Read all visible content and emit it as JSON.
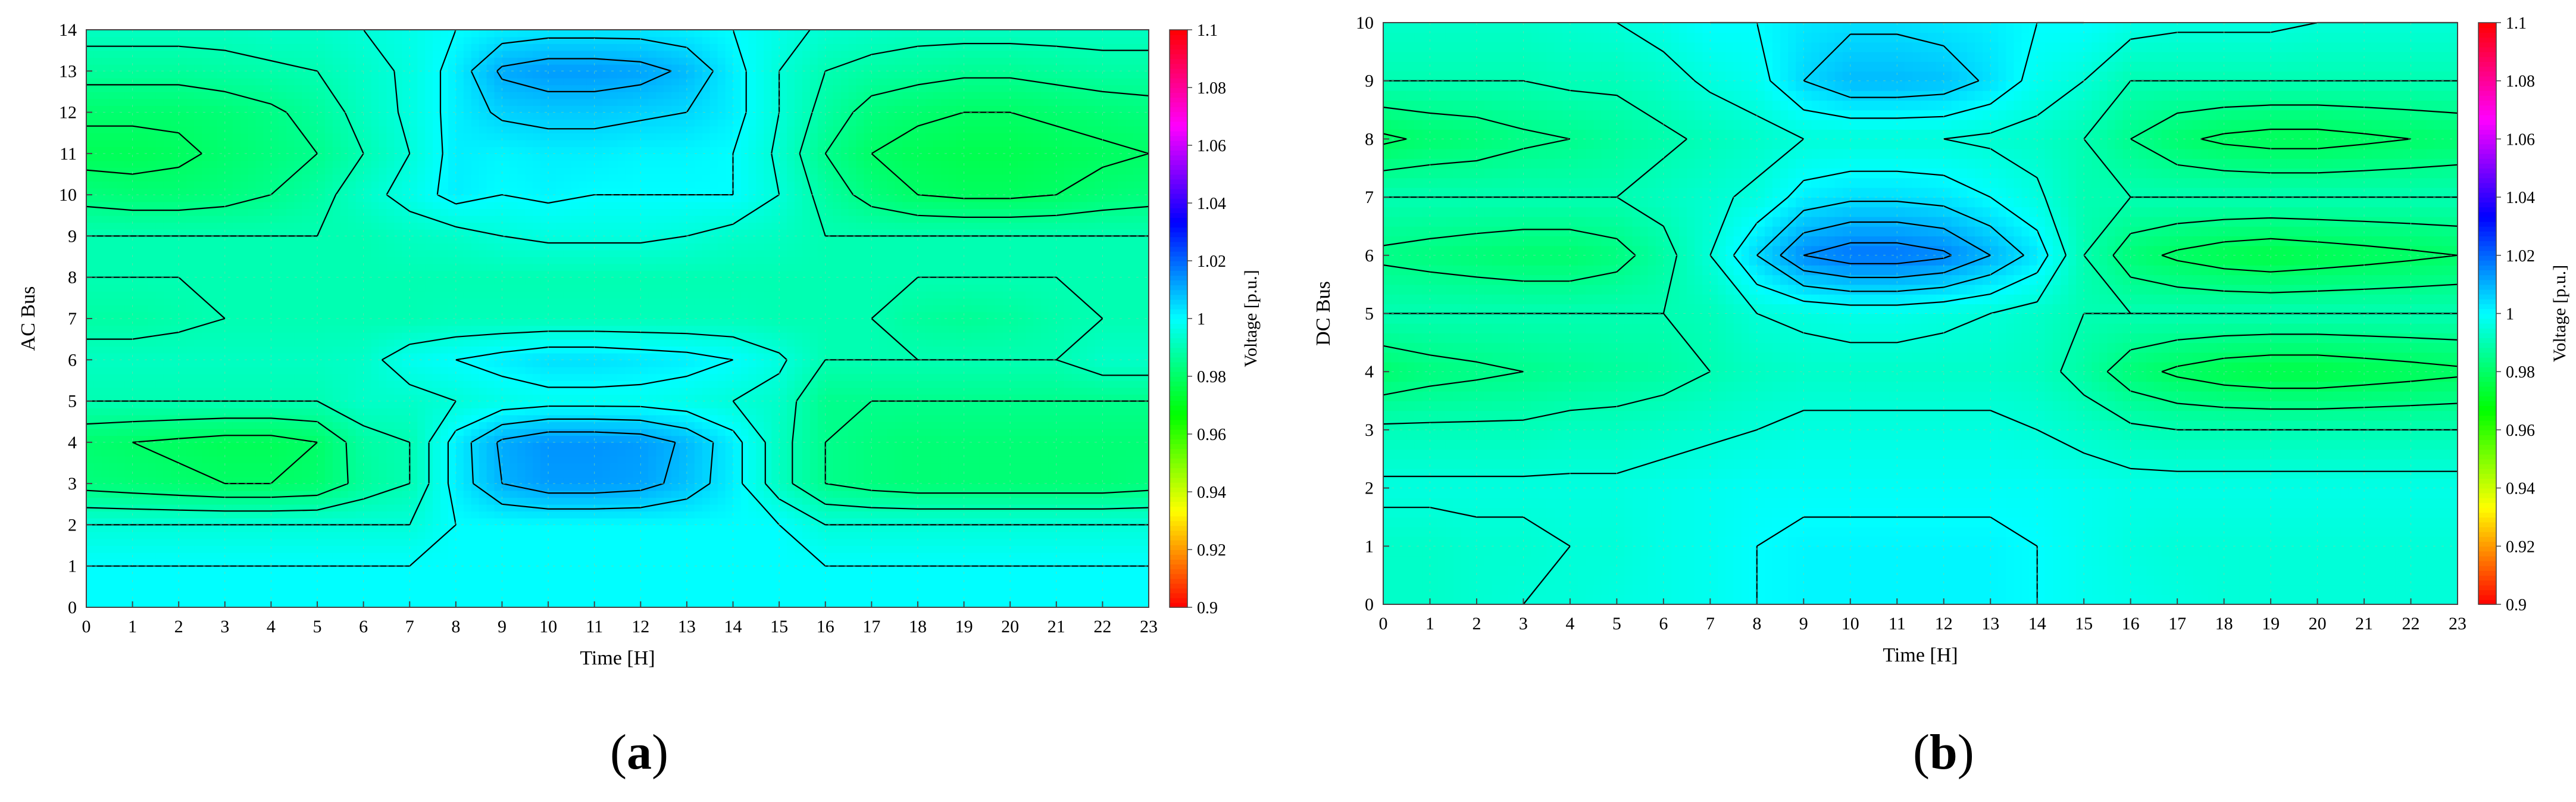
{
  "chart_data": [
    {
      "type": "heatmap",
      "panel_label": "a",
      "xlabel": "Time [H]",
      "ylabel": "AC Bus",
      "colorbar_label": "Voltage [p.u.]",
      "xlim": [
        0,
        23
      ],
      "ylim": [
        0,
        14
      ],
      "x_ticks": [
        "0",
        "1",
        "2",
        "3",
        "4",
        "5",
        "6",
        "7",
        "8",
        "9",
        "10",
        "11",
        "12",
        "13",
        "14",
        "15",
        "16",
        "17",
        "18",
        "19",
        "20",
        "21",
        "22",
        "23"
      ],
      "y_ticks": [
        "0",
        "1",
        "2",
        "3",
        "4",
        "5",
        "6",
        "7",
        "8",
        "9",
        "10",
        "11",
        "12",
        "13",
        "14"
      ],
      "colorbar_ticks": [
        "0.9",
        "0.92",
        "0.94",
        "0.96",
        "0.98",
        "1",
        "1.02",
        "1.04",
        "1.06",
        "1.08",
        "1.1"
      ],
      "colorbar_range": [
        0.9,
        1.1
      ],
      "x": [
        0,
        1,
        2,
        3,
        4,
        5,
        6,
        7,
        8,
        9,
        10,
        11,
        12,
        13,
        14,
        15,
        16,
        17,
        18,
        19,
        20,
        21,
        22,
        23
      ],
      "y": [
        0,
        1,
        2,
        3,
        4,
        5,
        6,
        7,
        8,
        9,
        10,
        11,
        12,
        13,
        14
      ],
      "z": [
        [
          1.0,
          1.0,
          1.0,
          1.0,
          1.0,
          1.0,
          1.0,
          1.0,
          1.0,
          1.0,
          1.0,
          1.0,
          1.0,
          1.0,
          1.0,
          1.0,
          1.0,
          1.0,
          1.0,
          1.0,
          1.0,
          1.0,
          1.0,
          1.0
        ],
        [
          1.0,
          1.0,
          1.0,
          1.0,
          1.0,
          1.0,
          1.0,
          1.0,
          1.0,
          1.0,
          1.0,
          1.0,
          1.0,
          1.0,
          1.0,
          1.0,
          1.0,
          1.0,
          1.0,
          1.0,
          1.0,
          1.0,
          1.0,
          1.0
        ],
        [
          0.995,
          0.995,
          0.995,
          0.995,
          0.995,
          0.995,
          0.995,
          0.995,
          1.0,
          1.0,
          1.0,
          1.0,
          1.0,
          1.0,
          1.0,
          1.0,
          0.995,
          0.995,
          0.995,
          0.995,
          0.995,
          0.995,
          0.995,
          0.995
        ],
        [
          0.983,
          0.982,
          0.981,
          0.98,
          0.98,
          0.981,
          0.987,
          0.99,
          1.002,
          1.01,
          1.013,
          1.013,
          1.012,
          1.008,
          1.002,
          0.992,
          0.985,
          0.983,
          0.982,
          0.982,
          0.982,
          0.982,
          0.982,
          0.983
        ],
        [
          0.981,
          0.98,
          0.979,
          0.978,
          0.978,
          0.98,
          0.988,
          0.99,
          1.002,
          1.011,
          1.014,
          1.014,
          1.013,
          1.009,
          1.002,
          0.992,
          0.985,
          0.983,
          0.982,
          0.982,
          0.982,
          0.982,
          0.982,
          0.982
        ],
        [
          0.99,
          0.99,
          0.99,
          0.99,
          0.99,
          0.99,
          0.993,
          0.993,
          0.995,
          0.997,
          0.998,
          0.998,
          0.998,
          0.997,
          0.995,
          0.993,
          0.985,
          0.985,
          0.985,
          0.985,
          0.985,
          0.985,
          0.985,
          0.985
        ],
        [
          0.992,
          0.992,
          0.992,
          0.992,
          0.992,
          0.992,
          0.993,
          0.998,
          1.0,
          1.002,
          1.004,
          1.004,
          1.003,
          1.002,
          1.0,
          0.996,
          0.99,
          0.99,
          0.99,
          0.99,
          0.99,
          0.99,
          0.993,
          0.993
        ],
        [
          0.988,
          0.988,
          0.989,
          0.99,
          0.99,
          0.99,
          0.99,
          0.99,
          0.991,
          0.991,
          0.991,
          0.991,
          0.991,
          0.991,
          0.991,
          0.99,
          0.99,
          0.99,
          0.987,
          0.986,
          0.987,
          0.989,
          0.99,
          0.99
        ],
        [
          0.99,
          0.99,
          0.99,
          0.99,
          0.99,
          0.99,
          0.99,
          0.99,
          0.99,
          0.99,
          0.99,
          0.99,
          0.99,
          0.99,
          0.99,
          0.99,
          0.99,
          0.99,
          0.99,
          0.99,
          0.99,
          0.99,
          0.99,
          0.99
        ],
        [
          0.99,
          0.99,
          0.99,
          0.99,
          0.99,
          0.99,
          0.99,
          0.992,
          0.993,
          0.995,
          0.996,
          0.996,
          0.996,
          0.995,
          0.993,
          0.992,
          0.99,
          0.99,
          0.99,
          0.99,
          0.99,
          0.99,
          0.99,
          0.99
        ],
        [
          0.983,
          0.982,
          0.982,
          0.983,
          0.985,
          0.988,
          0.993,
          0.997,
          1.002,
          1.0,
          1.001,
          1.0,
          1.0,
          1.0,
          1.0,
          0.995,
          0.988,
          0.983,
          0.98,
          0.979,
          0.979,
          0.98,
          0.982,
          0.983
        ],
        [
          0.978,
          0.978,
          0.979,
          0.981,
          0.983,
          0.985,
          0.99,
          0.995,
          1.002,
          1.001,
          1.002,
          1.002,
          1.001,
          1.001,
          1.0,
          0.994,
          0.985,
          0.98,
          0.978,
          0.977,
          0.977,
          0.978,
          0.979,
          0.98
        ],
        [
          0.981,
          0.981,
          0.981,
          0.982,
          0.984,
          0.987,
          0.992,
          0.996,
          1.002,
          1.006,
          1.007,
          1.007,
          1.006,
          1.005,
          1.002,
          0.995,
          0.988,
          0.983,
          0.981,
          0.98,
          0.98,
          0.981,
          0.982,
          0.983
        ],
        [
          0.987,
          0.987,
          0.987,
          0.988,
          0.989,
          0.99,
          0.993,
          0.996,
          1.002,
          1.011,
          1.013,
          1.013,
          1.012,
          1.009,
          1.002,
          0.995,
          0.99,
          0.988,
          0.987,
          0.986,
          0.986,
          0.987,
          0.988,
          0.988
        ],
        [
          0.992,
          0.992,
          0.992,
          0.992,
          0.993,
          0.993,
          0.995,
          0.997,
          1.0,
          1.002,
          1.003,
          1.003,
          1.003,
          1.002,
          1.0,
          0.997,
          0.994,
          0.993,
          0.992,
          0.992,
          0.992,
          0.992,
          0.992,
          0.992
        ]
      ]
    },
    {
      "type": "heatmap",
      "panel_label": "b",
      "xlabel": "Time [H]",
      "ylabel": "DC Bus",
      "colorbar_label": "Voltage [p.u.]",
      "xlim": [
        0,
        23
      ],
      "ylim": [
        0,
        10
      ],
      "x_ticks": [
        "0",
        "1",
        "2",
        "3",
        "4",
        "5",
        "6",
        "7",
        "8",
        "9",
        "10",
        "11",
        "12",
        "13",
        "14",
        "15",
        "16",
        "17",
        "18",
        "19",
        "20",
        "21",
        "22",
        "23"
      ],
      "y_ticks": [
        "0",
        "1",
        "2",
        "3",
        "4",
        "5",
        "6",
        "7",
        "8",
        "9",
        "10"
      ],
      "colorbar_ticks": [
        "0.9",
        "0.92",
        "0.94",
        "0.96",
        "0.98",
        "1",
        "1.02",
        "1.04",
        "1.06",
        "1.08",
        "1.1"
      ],
      "colorbar_range": [
        0.9,
        1.1
      ],
      "x": [
        0,
        1,
        2,
        3,
        4,
        5,
        6,
        7,
        8,
        9,
        10,
        11,
        12,
        13,
        14,
        15,
        16,
        17,
        18,
        19,
        20,
        21,
        22,
        23
      ],
      "y": [
        0,
        1,
        2,
        3,
        4,
        5,
        6,
        7,
        8,
        9,
        10
      ],
      "z": [
        [
          0.993,
          0.993,
          0.994,
          0.995,
          0.995,
          0.996,
          0.997,
          0.998,
          1.0,
          1.001,
          1.001,
          1.001,
          1.001,
          1.001,
          1.0,
          0.998,
          0.997,
          0.996,
          0.995,
          0.995,
          0.995,
          0.995,
          0.995,
          0.995
        ],
        [
          0.993,
          0.993,
          0.994,
          0.994,
          0.995,
          0.995,
          0.997,
          0.998,
          1.0,
          1.001,
          1.001,
          1.001,
          1.001,
          1.001,
          1.0,
          0.998,
          0.996,
          0.995,
          0.995,
          0.995,
          0.995,
          0.995,
          0.995,
          0.995
        ],
        [
          0.996,
          0.996,
          0.996,
          0.996,
          0.996,
          0.996,
          0.997,
          0.998,
          0.999,
          0.999,
          0.999,
          0.999,
          0.999,
          0.999,
          0.999,
          0.998,
          0.997,
          0.997,
          0.997,
          0.997,
          0.997,
          0.997,
          0.997,
          0.997
        ],
        [
          0.991,
          0.991,
          0.991,
          0.991,
          0.992,
          0.992,
          0.993,
          0.994,
          0.995,
          0.996,
          0.996,
          0.996,
          0.996,
          0.996,
          0.995,
          0.993,
          0.991,
          0.99,
          0.99,
          0.99,
          0.99,
          0.99,
          0.99,
          0.99
        ],
        [
          0.981,
          0.983,
          0.984,
          0.985,
          0.986,
          0.987,
          0.988,
          0.99,
          0.992,
          0.993,
          0.993,
          0.993,
          0.993,
          0.993,
          0.992,
          0.988,
          0.982,
          0.979,
          0.977,
          0.976,
          0.976,
          0.977,
          0.978,
          0.979
        ],
        [
          0.99,
          0.99,
          0.99,
          0.99,
          0.99,
          0.99,
          0.99,
          0.991,
          0.995,
          0.996,
          0.997,
          0.997,
          0.996,
          0.995,
          0.993,
          0.99,
          0.99,
          0.99,
          0.99,
          0.99,
          0.99,
          0.99,
          0.99,
          0.99
        ],
        [
          0.984,
          0.983,
          0.982,
          0.981,
          0.981,
          0.983,
          0.988,
          0.995,
          1.005,
          1.015,
          1.018,
          1.018,
          1.016,
          1.01,
          1.003,
          0.99,
          0.982,
          0.979,
          0.977,
          0.976,
          0.977,
          0.978,
          0.979,
          0.98
        ],
        [
          0.99,
          0.99,
          0.99,
          0.99,
          0.99,
          0.99,
          0.992,
          0.994,
          0.996,
          1.002,
          1.004,
          1.004,
          1.003,
          1.0,
          0.996,
          0.99,
          0.99,
          0.99,
          0.99,
          0.99,
          0.99,
          0.99,
          0.99,
          0.99
        ],
        [
          0.979,
          0.981,
          0.982,
          0.984,
          0.985,
          0.987,
          0.989,
          0.991,
          0.993,
          0.995,
          0.995,
          0.995,
          0.995,
          0.994,
          0.993,
          0.99,
          0.985,
          0.981,
          0.979,
          0.978,
          0.978,
          0.979,
          0.98,
          0.981
        ],
        [
          0.99,
          0.99,
          0.99,
          0.99,
          0.991,
          0.991,
          0.993,
          0.996,
          0.998,
          1.005,
          1.009,
          1.009,
          1.008,
          1.004,
          0.998,
          0.995,
          0.99,
          0.99,
          0.99,
          0.99,
          0.99,
          0.99,
          0.99,
          0.99
        ],
        [
          0.993,
          0.993,
          0.993,
          0.993,
          0.994,
          0.995,
          0.997,
          1.0,
          1.0,
          1.003,
          1.004,
          1.004,
          1.003,
          1.002,
          1.0,
          1.0,
          0.997,
          0.996,
          0.996,
          0.996,
          0.995,
          0.995,
          0.995,
          0.995
        ]
      ]
    }
  ]
}
